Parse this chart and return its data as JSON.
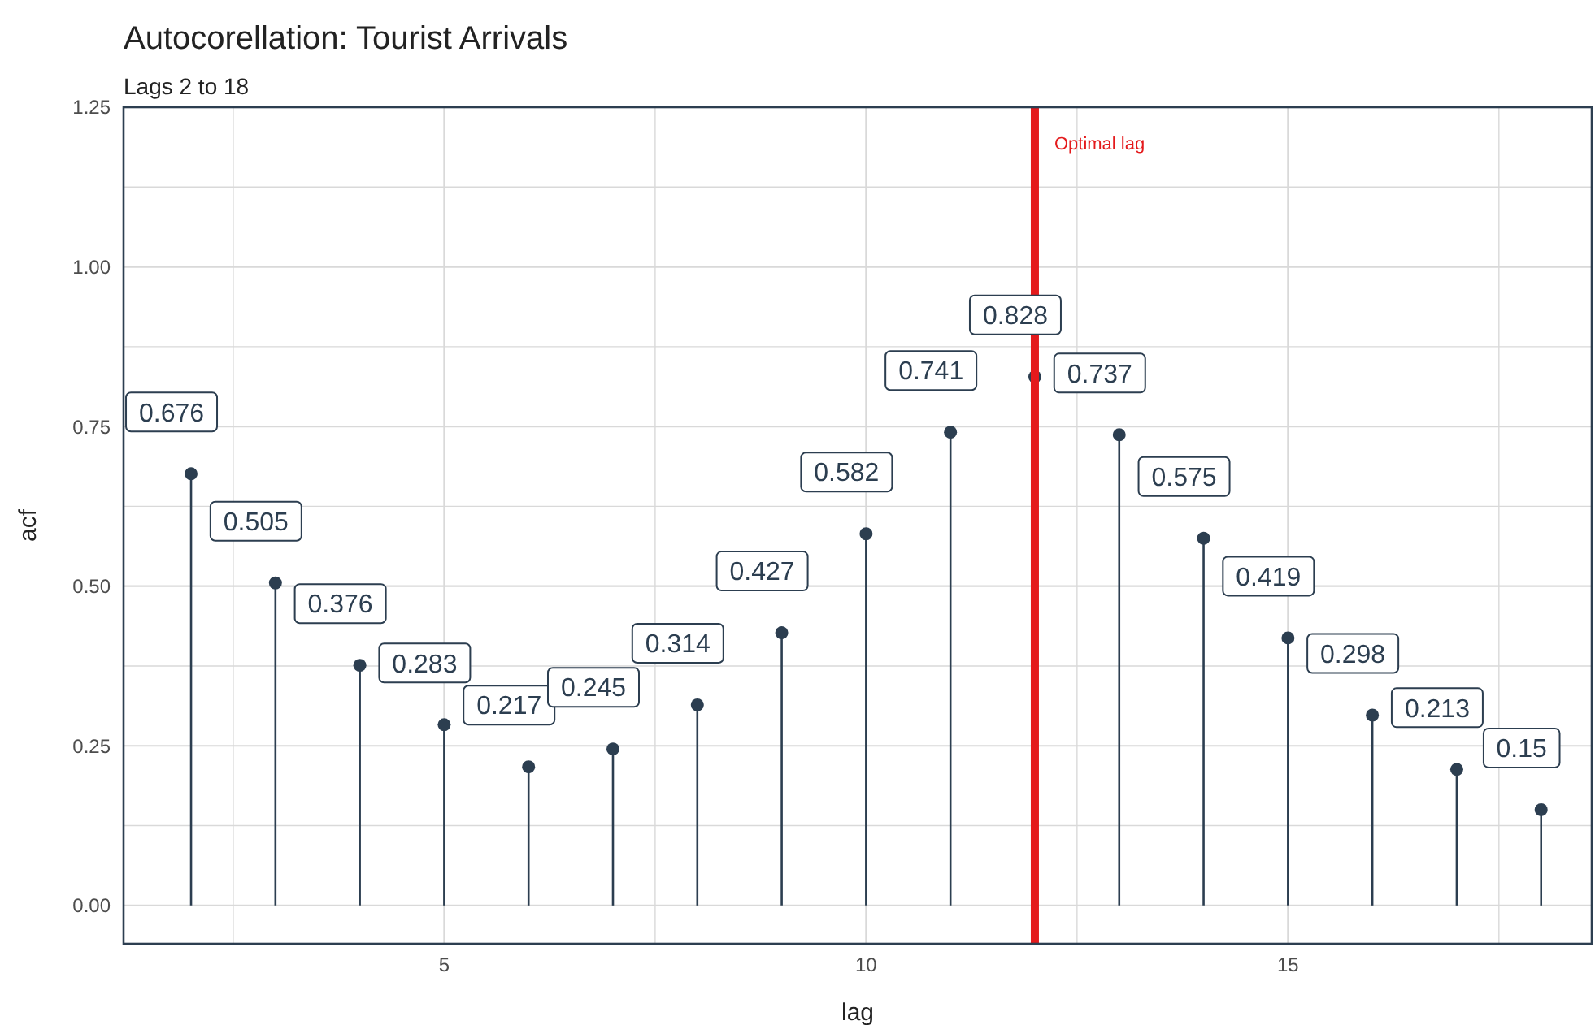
{
  "chart_data": {
    "type": "lollipop",
    "title": "Autocorellation: Tourist Arrivals",
    "subtitle": "Lags 2 to 18",
    "xlabel": "lag",
    "ylabel": "acf",
    "x": [
      2,
      3,
      4,
      5,
      6,
      7,
      8,
      9,
      10,
      11,
      12,
      13,
      14,
      15,
      16,
      17,
      18
    ],
    "values": [
      0.676,
      0.505,
      0.376,
      0.283,
      0.217,
      0.245,
      0.314,
      0.427,
      0.582,
      0.741,
      0.828,
      0.737,
      0.575,
      0.419,
      0.298,
      0.213,
      0.15
    ],
    "color": "#2c3e50",
    "data_labels": true,
    "marker": "circle",
    "xlim": [
      1.2,
      18.6
    ],
    "xticks": [
      {
        "value": 2.5,
        "label": null
      },
      5,
      {
        "value": 7.5,
        "label": null
      },
      10,
      {
        "value": 12.5,
        "label": null
      },
      15,
      {
        "value": 17.5,
        "label": null
      }
    ],
    "ylim": [
      -0.06,
      1.25
    ],
    "yticks": [
      {
        "value": 0,
        "label": "0.00"
      },
      {
        "value": 0.125,
        "label": null
      },
      {
        "value": 0.25,
        "label": "0.25"
      },
      {
        "value": 0.375,
        "label": null
      },
      {
        "value": 0.5,
        "label": "0.50"
      },
      {
        "value": 0.625,
        "label": null
      },
      {
        "value": 0.75,
        "label": "0.75"
      },
      {
        "value": 0.875,
        "label": null
      },
      {
        "value": 1,
        "label": "1.00"
      },
      {
        "value": 1.125,
        "label": null
      },
      {
        "value": 1.25,
        "label": "1.25"
      }
    ],
    "grid": true,
    "ref_lines": [
      {
        "axis": "x",
        "value": 12,
        "label": "Optimal lag",
        "color": "#e41a1c"
      }
    ]
  }
}
